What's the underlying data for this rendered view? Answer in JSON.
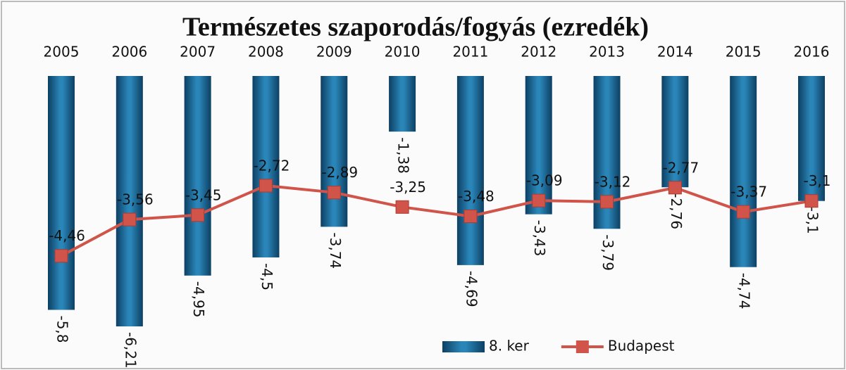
{
  "chart_data": {
    "type": "bar-line",
    "title": "Természetes szaporodás/fogyás (ezredék)",
    "categories": [
      "2005",
      "2006",
      "2007",
      "2008",
      "2009",
      "2010",
      "2011",
      "2012",
      "2013",
      "2014",
      "2015",
      "2016"
    ],
    "series": [
      {
        "name": "8. ker",
        "type": "bar",
        "color": "#2a86b8",
        "values": [
          -5.8,
          -6.21,
          -4.95,
          -4.5,
          -3.74,
          -1.38,
          -4.69,
          -3.43,
          -3.79,
          -2.76,
          -4.74,
          -3.1
        ],
        "value_labels": [
          "-5,8",
          "-6,21",
          "-4,95",
          "-4,5",
          "-3,74",
          "-1,38",
          "-4,69",
          "-3,43",
          "-3,79",
          "-2,76",
          "-4,74",
          "-3,1"
        ]
      },
      {
        "name": "Budapest",
        "type": "line",
        "color": "#d0544a",
        "values": [
          -4.46,
          -3.56,
          -3.45,
          -2.72,
          -2.89,
          -3.25,
          -3.48,
          -3.09,
          -3.12,
          -2.77,
          -3.37,
          -3.1
        ],
        "value_labels": [
          "-4,46",
          "-3,56",
          "-3,45",
          "-2,72",
          "-2,89",
          "-3,25",
          "-3,48",
          "-3,09",
          "-3,12",
          "-2,77",
          "-3,37",
          "-3,1"
        ]
      }
    ]
  }
}
